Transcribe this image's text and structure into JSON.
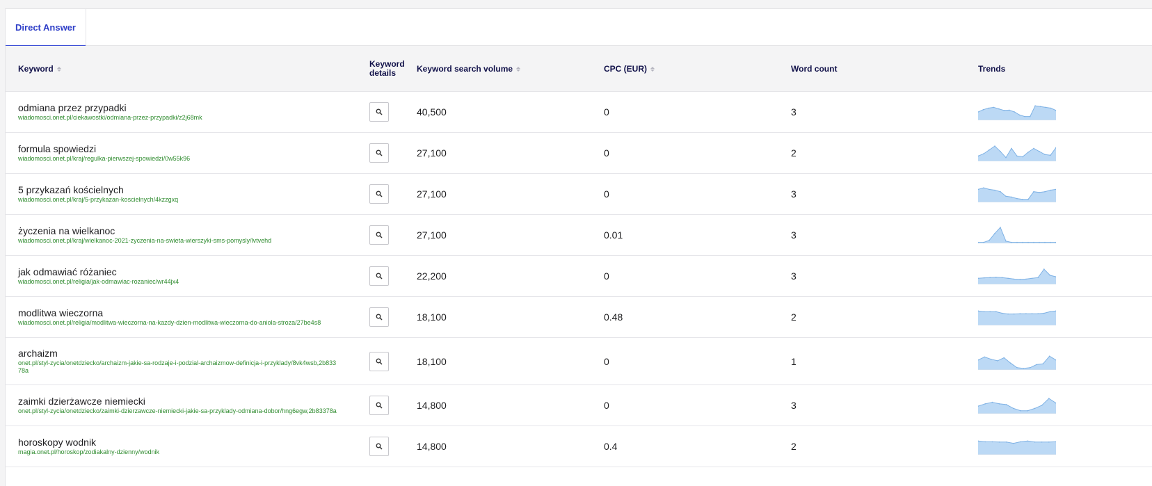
{
  "tabs": [
    {
      "label": "Direct Answer",
      "active": true
    }
  ],
  "columns": {
    "keyword": "Keyword",
    "keyword_details": "Keyword details",
    "search_volume": "Keyword search volume",
    "cpc": "CPC (EUR)",
    "word_count": "Word count",
    "trends": "Trends"
  },
  "icons": {
    "details": "search-icon",
    "sort": "sort-icon"
  },
  "colors": {
    "accent": "#2f3fc8",
    "url": "#2e8b2e",
    "trend_fill": "#bcd9f5",
    "trend_line": "#7fb2e5"
  },
  "rows": [
    {
      "keyword": "odmiana przez przypadki",
      "url": "wiadomosci.onet.pl/ciekawostki/odmiana-przez-przypadki/z2j68mk",
      "volume": "40,500",
      "cpc": "0",
      "word_count": "3",
      "trend": [
        0.5,
        0.65,
        0.75,
        0.8,
        0.7,
        0.6,
        0.62,
        0.5,
        0.3,
        0.2,
        0.2,
        0.9,
        0.85,
        0.8,
        0.75,
        0.6
      ]
    },
    {
      "keyword": "formula spowiedzi",
      "url": "wiadomosci.onet.pl/kraj/regulka-pierwszej-spowiedzi/0w55k96",
      "volume": "27,100",
      "cpc": "0",
      "word_count": "2",
      "trend": [
        0.3,
        0.45,
        0.7,
        0.95,
        0.6,
        0.2,
        0.8,
        0.3,
        0.25,
        0.55,
        0.8,
        0.6,
        0.4,
        0.35,
        0.85
      ]
    },
    {
      "keyword": "5 przykazań kościelnych",
      "url": "wiadomosci.onet.pl/kraj/5-przykazan-koscielnych/4kzzgxq",
      "volume": "27,100",
      "cpc": "0",
      "word_count": "3",
      "trend": [
        0.8,
        0.9,
        0.8,
        0.75,
        0.65,
        0.35,
        0.3,
        0.2,
        0.15,
        0.15,
        0.65,
        0.6,
        0.65,
        0.75,
        0.8
      ]
    },
    {
      "keyword": "życzenia na wielkanoc",
      "url": "wiadomosci.onet.pl/kraj/wielkanoc-2021-zyczenia-na-swieta-wierszyki-sms-pomysly/lvtvehd",
      "volume": "27,100",
      "cpc": "0.01",
      "word_count": "3",
      "trend": [
        0.02,
        0.02,
        0.15,
        0.6,
        1.0,
        0.1,
        0.02,
        0.02,
        0.02,
        0.02,
        0.02,
        0.02,
        0.02,
        0.02,
        0.02
      ]
    },
    {
      "keyword": "jak odmawiać różaniec",
      "url": "wiadomosci.onet.pl/religia/jak-odmawiac-rozaniec/wr44jx4",
      "volume": "22,200",
      "cpc": "0",
      "word_count": "3",
      "trend": [
        0.35,
        0.38,
        0.4,
        0.42,
        0.4,
        0.35,
        0.3,
        0.28,
        0.3,
        0.35,
        0.4,
        0.95,
        0.55,
        0.45
      ]
    },
    {
      "keyword": "modlitwa wieczorna",
      "url": "wiadomosci.onet.pl/religia/modlitwa-wieczorna-na-kazdy-dzien-modlitwa-wieczorna-do-aniola-stroza/27be4s8",
      "volume": "18,100",
      "cpc": "0.48",
      "word_count": "2",
      "trend": [
        0.9,
        0.85,
        0.85,
        0.85,
        0.75,
        0.7,
        0.7,
        0.72,
        0.72,
        0.72,
        0.72,
        0.75,
        0.85,
        0.9
      ]
    },
    {
      "keyword": "archaizm",
      "url": "onet.pl/styl-zycia/onetdziecko/archaizm-jakie-sa-rodzaje-i-podzial-archaizmow-definicja-i-przyklady/8vk4wsb,2b83378a",
      "volume": "18,100",
      "cpc": "0",
      "word_count": "1",
      "trend": [
        0.6,
        0.8,
        0.65,
        0.55,
        0.75,
        0.4,
        0.1,
        0.05,
        0.1,
        0.3,
        0.35,
        0.85,
        0.6
      ]
    },
    {
      "keyword": "zaimki dzierżawcze niemiecki",
      "url": "onet.pl/styl-zycia/onetdziecko/zaimki-dzierzawcze-niemiecki-jakie-sa-przyklady-odmiana-dobor/hng6egw,2b83378a",
      "volume": "14,800",
      "cpc": "0",
      "word_count": "3",
      "trend": [
        0.45,
        0.6,
        0.7,
        0.6,
        0.55,
        0.3,
        0.15,
        0.15,
        0.3,
        0.5,
        0.95,
        0.65
      ]
    },
    {
      "keyword": "horoskopy wodnik",
      "url": "magia.onet.pl/horoskop/zodiakalny-dzienny/wodnik",
      "volume": "14,800",
      "cpc": "0.4",
      "word_count": "2",
      "trend": [
        0.85,
        0.8,
        0.8,
        0.78,
        0.78,
        0.7,
        0.8,
        0.85,
        0.78,
        0.78,
        0.78,
        0.8
      ]
    }
  ]
}
